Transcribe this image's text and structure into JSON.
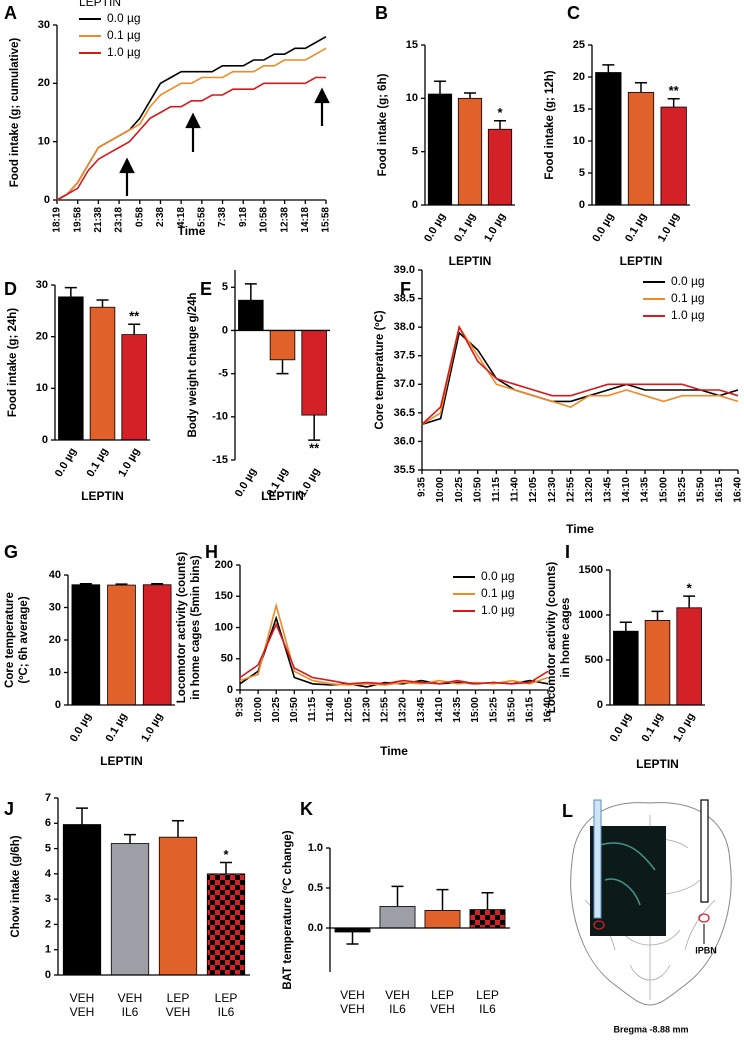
{
  "chart_data": [
    {
      "panel": "A",
      "type": "line",
      "y_label": "Food intake (g; cumulative)",
      "x_label": "Time",
      "categories": [
        "18:19",
        null,
        "19:58",
        null,
        "21:38",
        null,
        "23:18",
        null,
        "0:58",
        null,
        "2:38",
        null,
        "4:18",
        null,
        "5:58",
        null,
        "7:38",
        null,
        "9:18",
        null,
        "10:58",
        null,
        "12:38",
        null,
        "14:18",
        null,
        "15:58"
      ],
      "series": [
        {
          "name": "0.0 µg",
          "color": "#000000",
          "values": [
            0,
            1,
            3,
            6,
            9,
            10,
            11,
            12,
            14,
            17,
            20,
            21,
            22,
            22,
            22,
            22,
            23,
            23,
            23,
            24,
            24,
            25,
            25,
            26,
            26,
            27,
            28
          ]
        },
        {
          "name": "0.1 µg",
          "color": "#f08a24",
          "values": [
            0,
            1,
            3,
            6,
            9,
            10,
            11,
            12,
            13,
            16,
            18,
            19,
            20,
            20,
            21,
            21,
            21,
            22,
            22,
            22,
            23,
            23,
            24,
            24,
            24,
            25,
            26
          ]
        },
        {
          "name": "1.0 µg",
          "color": "#d7191c",
          "values": [
            0,
            1,
            2,
            5,
            7,
            8,
            9,
            10,
            12,
            14,
            15,
            16,
            16,
            17,
            17,
            18,
            18,
            19,
            19,
            19,
            20,
            20,
            20,
            20,
            20,
            21,
            21
          ]
        }
      ],
      "ylim": [
        0,
        30
      ],
      "yticks": [
        0,
        10,
        20,
        30
      ],
      "legend": {
        "title": "LEPTIN",
        "corner": "upper left"
      }
    },
    {
      "panel": "B",
      "type": "bar",
      "y_label": "Food intake (g; 6h)",
      "x_label": "LEPTIN",
      "categories": [
        "0.0 µg",
        "0.1 µg",
        "1.0 µg"
      ],
      "values": [
        10.4,
        10.0,
        7.1
      ],
      "errors": [
        1.2,
        0.5,
        0.8
      ],
      "colors": [
        "#000000",
        "#e0622a",
        "#d42027"
      ],
      "ylim": [
        0,
        15
      ],
      "yticks": [
        0,
        5,
        10,
        15
      ],
      "annotations": [
        {
          "text": "*",
          "category": "1.0 µg"
        }
      ],
      "rotate_labels": true
    },
    {
      "panel": "C",
      "type": "bar",
      "y_label": "Food intake (g; 12h)",
      "x_label": "LEPTIN",
      "categories": [
        "0.0 µg",
        "0.1 µg",
        "1.0 µg"
      ],
      "values": [
        20.7,
        17.6,
        15.3
      ],
      "errors": [
        1.2,
        1.5,
        1.3
      ],
      "colors": [
        "#000000",
        "#e0622a",
        "#d42027"
      ],
      "ylim": [
        0,
        25
      ],
      "yticks": [
        0,
        5,
        10,
        15,
        20,
        25
      ],
      "annotations": [
        {
          "text": "**",
          "category": "1.0 µg"
        }
      ],
      "rotate_labels": true
    },
    {
      "panel": "D",
      "type": "bar",
      "y_label": "Food intake (g; 24h)",
      "x_label": "LEPTIN",
      "categories": [
        "0.0 µg",
        "0.1 µg",
        "1.0 µg"
      ],
      "values": [
        27.7,
        25.7,
        20.4
      ],
      "errors": [
        1.8,
        1.4,
        2.0
      ],
      "colors": [
        "#000000",
        "#e0622a",
        "#d42027"
      ],
      "ylim": [
        0,
        30
      ],
      "yticks": [
        0,
        10,
        20,
        30
      ],
      "annotations": [
        {
          "text": "**",
          "category": "1.0 µg"
        }
      ],
      "rotate_labels": true
    },
    {
      "panel": "E",
      "type": "bar",
      "y_label": "Body weight change g/24h",
      "x_label": "LEPTIN",
      "categories": [
        "0.0 µg",
        "0.1 µg",
        "1.0 µg"
      ],
      "values": [
        3.5,
        -3.4,
        -9.8
      ],
      "errors": [
        1.9,
        1.6,
        2.9
      ],
      "colors": [
        "#000000",
        "#e0622a",
        "#d42027"
      ],
      "ylim": [
        -15,
        7
      ],
      "yticks": [
        -15,
        -10,
        -5,
        0,
        5
      ],
      "annotations": [
        {
          "text": "**",
          "category": "1.0 µg"
        }
      ],
      "rotate_labels": true
    },
    {
      "panel": "F",
      "type": "line",
      "y_label": "Core temperature (ºC)",
      "x_label": "Time",
      "categories": [
        "9:35",
        "10:00",
        "10:25",
        "10:50",
        "11:15",
        "11:40",
        "12:05",
        "12:30",
        "12:55",
        "13:20",
        "13:45",
        "14:10",
        "14:35",
        "15:00",
        "15:25",
        "15:50",
        "16:15",
        "16:40"
      ],
      "series": [
        {
          "name": "0.0 µg",
          "color": "#000000",
          "values": [
            36.3,
            36.4,
            37.9,
            37.6,
            37.1,
            36.9,
            36.8,
            36.7,
            36.7,
            36.8,
            36.9,
            37.0,
            36.9,
            36.9,
            36.9,
            36.9,
            36.8,
            36.9
          ]
        },
        {
          "name": "0.1 µg",
          "color": "#f08a24",
          "values": [
            36.3,
            36.5,
            38.0,
            37.5,
            37.0,
            36.9,
            36.8,
            36.7,
            36.6,
            36.8,
            36.8,
            36.9,
            36.8,
            36.7,
            36.8,
            36.8,
            36.8,
            36.7
          ]
        },
        {
          "name": "1.0 µg",
          "color": "#d7191c",
          "values": [
            36.3,
            36.6,
            38.0,
            37.4,
            37.1,
            37.0,
            36.9,
            36.8,
            36.8,
            36.9,
            37.0,
            37.0,
            37.0,
            37.0,
            37.0,
            36.9,
            36.9,
            36.8
          ]
        }
      ],
      "ylim": [
        35.5,
        39.0
      ],
      "yticks": [
        35.5,
        {
          "value": 36,
          "label": "36.0"
        },
        36.5,
        {
          "value": 37,
          "label": "37.0"
        },
        37.5,
        {
          "value": 38,
          "label": "38.0"
        },
        38.5,
        {
          "value": 39,
          "label": "39.0"
        }
      ],
      "legend": {
        "corner": "upper right"
      }
    },
    {
      "panel": "G",
      "type": "bar",
      "y_label": [
        "Core temperature",
        "(ºC; 6h average)"
      ],
      "x_label": "LEPTIN",
      "categories": [
        "0.0 µg",
        "0.1 µg",
        "1.0 µg"
      ],
      "values": [
        37.0,
        36.9,
        37.0
      ],
      "errors": [
        0.3,
        0.3,
        0.3
      ],
      "colors": [
        "#000000",
        "#e0622a",
        "#d42027"
      ],
      "ylim": [
        0,
        40
      ],
      "yticks": [
        0,
        10,
        20,
        30,
        40
      ],
      "rotate_labels": true
    },
    {
      "panel": "H",
      "type": "line",
      "y_label": [
        "Locomotor activity (counts)",
        "in home cages (5min bins)"
      ],
      "x_label": "Time",
      "categories": [
        "9:35",
        "10:00",
        "10:25",
        "10:50",
        "11:15",
        "11:40",
        "12:05",
        "12:30",
        "12:55",
        "13:20",
        "13:45",
        "14:10",
        "14:35",
        "15:00",
        "15:25",
        "15:50",
        "16:15",
        "16:40"
      ],
      "series": [
        {
          "name": "0.0 µg",
          "color": "#000000",
          "values": [
            10,
            30,
            115,
            20,
            10,
            8,
            10,
            5,
            12,
            10,
            15,
            10,
            12,
            10,
            12,
            10,
            15,
            10
          ]
        },
        {
          "name": "0.1 µg",
          "color": "#f08a24",
          "values": [
            15,
            25,
            135,
            30,
            15,
            10,
            8,
            10,
            8,
            12,
            10,
            15,
            10,
            12,
            10,
            15,
            10,
            20
          ]
        },
        {
          "name": "1.0 µg",
          "color": "#d7191c",
          "values": [
            20,
            40,
            105,
            35,
            20,
            15,
            10,
            12,
            10,
            15,
            12,
            10,
            15,
            10,
            12,
            10,
            12,
            30
          ]
        }
      ],
      "ylim": [
        0,
        200
      ],
      "yticks": [
        0,
        50,
        100,
        150,
        200
      ],
      "legend": {
        "corner": "upper right"
      }
    },
    {
      "panel": "I",
      "type": "bar",
      "y_label": [
        "Locomotor activity (counts)",
        "in home cages"
      ],
      "x_label": "LEPTIN",
      "categories": [
        "0.0 µg",
        "0.1 µg",
        "1.0 µg"
      ],
      "values": [
        820,
        940,
        1080
      ],
      "errors": [
        100,
        100,
        130
      ],
      "colors": [
        "#000000",
        "#e0622a",
        "#d42027"
      ],
      "ylim": [
        0,
        1500
      ],
      "yticks": [
        0,
        500,
        1000,
        1500
      ],
      "annotations": [
        {
          "text": "*",
          "category": "1.0 µg"
        }
      ],
      "rotate_labels": true
    },
    {
      "panel": "J",
      "type": "bar",
      "y_label": "Chow intake (g/6h)",
      "categories": [
        [
          "VEH",
          "VEH"
        ],
        [
          "VEH",
          "IL6"
        ],
        [
          "LEP",
          "VEH"
        ],
        [
          "LEP",
          "IL6"
        ]
      ],
      "values": [
        5.95,
        5.2,
        5.45,
        4.0
      ],
      "errors": [
        0.65,
        0.35,
        0.65,
        0.45
      ],
      "colors": [
        "#000000",
        "#9d9ea6",
        "#e0622a",
        "#d42027"
      ],
      "checkered": [
        false,
        false,
        false,
        true
      ],
      "ylim": [
        0,
        7
      ],
      "yticks": [
        0,
        1,
        2,
        3,
        4,
        5,
        6,
        7
      ],
      "annotations": [
        {
          "text": "*",
          "category": 3
        }
      ],
      "rotate_labels": false
    },
    {
      "panel": "K",
      "type": "bar",
      "y_label": "BAT temperature (ºC change)",
      "categories": [
        [
          "VEH",
          "VEH"
        ],
        [
          "VEH",
          "IL6"
        ],
        [
          "LEP",
          "VEH"
        ],
        [
          "LEP",
          "IL6"
        ]
      ],
      "values": [
        -0.05,
        0.27,
        0.22,
        0.23
      ],
      "errors": [
        0.15,
        0.25,
        0.26,
        0.21
      ],
      "colors": [
        "#000000",
        "#9d9ea6",
        "#e0622a",
        "#d42027"
      ],
      "checkered": [
        false,
        false,
        false,
        true
      ],
      "ylim": [
        -0.55,
        1.0
      ],
      "yticks": [
        {
          "value": 0,
          "label": "0.0"
        },
        0.5,
        {
          "value": 1,
          "label": "1.0"
        }
      ],
      "rotate_labels": false
    }
  ],
  "diagram": {
    "panel": "L",
    "region": "lPBN",
    "bregma": "Bregma -8.88 mm"
  }
}
